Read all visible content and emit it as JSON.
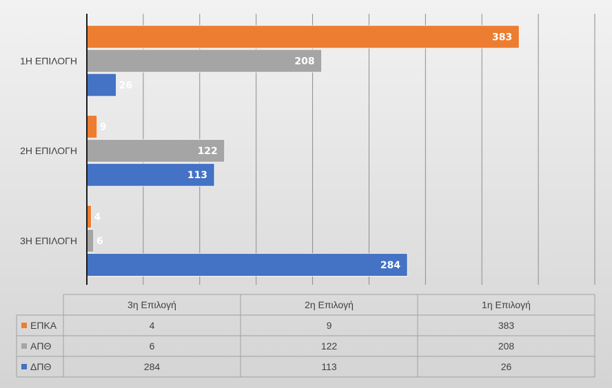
{
  "chart_data": {
    "type": "bar",
    "orientation": "horizontal",
    "categories": [
      "1Η ΕΠΙΛΟΓΗ",
      "2Η ΕΠΙΛΟΓΗ",
      "3Η ΕΠΙΛΟΓΗ"
    ],
    "series": [
      {
        "name": "ΕΠΚΑ",
        "color": "#ED7D31",
        "values": [
          383,
          9,
          4
        ]
      },
      {
        "name": "ΑΠΘ",
        "color": "#A5A5A5",
        "values": [
          208,
          122,
          6
        ]
      },
      {
        "name": "ΔΠΘ",
        "color": "#4472C4",
        "values": [
          26,
          113,
          284
        ]
      }
    ],
    "xlim": [
      0,
      450
    ],
    "grid": true,
    "data_labels": true,
    "data_table": {
      "columns": [
        "3η Επιλογή",
        "2η Επιλογή",
        "1η Επιλογή"
      ],
      "rows": [
        {
          "name": "ΕΠΚΑ",
          "values": [
            "4",
            "9",
            "383"
          ]
        },
        {
          "name": "ΑΠΘ",
          "values": [
            "6",
            "122",
            "208"
          ]
        },
        {
          "name": "ΔΠΘ",
          "values": [
            "284",
            "113",
            "26"
          ]
        }
      ]
    }
  }
}
